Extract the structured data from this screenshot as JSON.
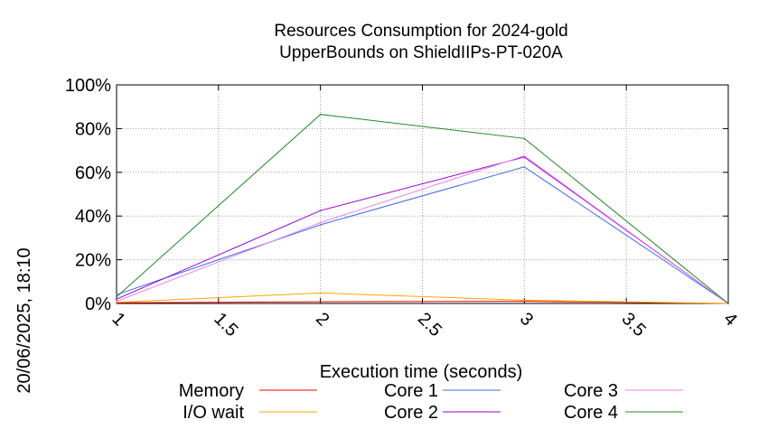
{
  "chart_data": {
    "type": "line",
    "title": "Resources Consumption for 2024-gold",
    "subtitle": "UpperBounds on ShieldIIPs-PT-020A",
    "xlabel": "Execution time (seconds)",
    "ylabel": "",
    "xlim": [
      1,
      4
    ],
    "ylim": [
      0,
      100
    ],
    "x_ticks": [
      "1",
      "1.5",
      "2",
      "2.5",
      "3",
      "3.5",
      "4"
    ],
    "x_tick_values": [
      1,
      1.5,
      2,
      2.5,
      3,
      3.5,
      4
    ],
    "y_ticks": [
      "0%",
      "20%",
      "40%",
      "60%",
      "80%",
      "100%"
    ],
    "y_tick_values": [
      0,
      20,
      40,
      60,
      80,
      100
    ],
    "grid": true,
    "legend_position": "bottom",
    "side_label": "20/06/2025, 18:10",
    "x": [
      1,
      2,
      3,
      4
    ],
    "series": [
      {
        "name": "Memory",
        "color": "#ff0000",
        "values": [
          0.3,
          0.8,
          1.0,
          0.0
        ]
      },
      {
        "name": "I/O wait",
        "color": "#ffa500",
        "values": [
          0.5,
          4.8,
          1.5,
          0.0
        ]
      },
      {
        "name": "Core 1",
        "color": "#4169e1",
        "values": [
          4.0,
          36.0,
          62.5,
          0.0
        ]
      },
      {
        "name": "Core 2",
        "color": "#9400d3",
        "values": [
          2.0,
          42.5,
          67.0,
          0.0
        ]
      },
      {
        "name": "Core 3",
        "color": "#ee82ee",
        "values": [
          1.0,
          37.0,
          67.5,
          0.0
        ]
      },
      {
        "name": "Core 4",
        "color": "#228b22",
        "values": [
          3.0,
          86.5,
          75.5,
          0.0
        ]
      }
    ]
  }
}
